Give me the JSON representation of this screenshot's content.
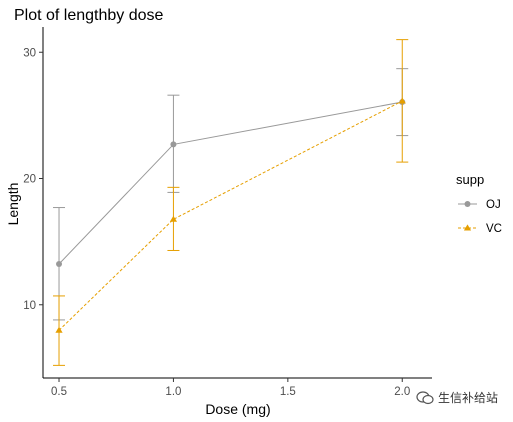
{
  "chart_data": {
    "type": "line",
    "title": "Plot of lengthby dose",
    "xlabel": "Dose (mg)",
    "ylabel": "Length",
    "x": [
      0.5,
      1.0,
      2.0
    ],
    "xlim": [
      0.43,
      2.13
    ],
    "ylim": [
      4.2,
      32.0
    ],
    "x_ticks": [
      0.5,
      1.0,
      1.5,
      2.0
    ],
    "x_tick_labels": [
      "0.5",
      "1.0",
      "1.5",
      "2.0"
    ],
    "y_ticks": [
      10,
      20,
      30
    ],
    "y_tick_labels": [
      "10",
      "20",
      "30"
    ],
    "grid": false,
    "legend": {
      "title": "supp",
      "position": "right"
    },
    "series": [
      {
        "name": "OJ",
        "color": "#999999",
        "marker": "circle",
        "line_style": "solid",
        "values": [
          13.23,
          22.7,
          26.06
        ],
        "lower": [
          8.8,
          18.9,
          23.4
        ],
        "upper": [
          17.7,
          26.6,
          28.7
        ]
      },
      {
        "name": "VC",
        "color": "#E69F00",
        "marker": "triangle",
        "line_style": "dashed",
        "values": [
          7.98,
          16.77,
          26.14
        ],
        "lower": [
          5.2,
          14.3,
          21.3
        ],
        "upper": [
          10.7,
          19.3,
          31.0
        ]
      }
    ]
  },
  "watermark": {
    "text": "生信补给站"
  }
}
